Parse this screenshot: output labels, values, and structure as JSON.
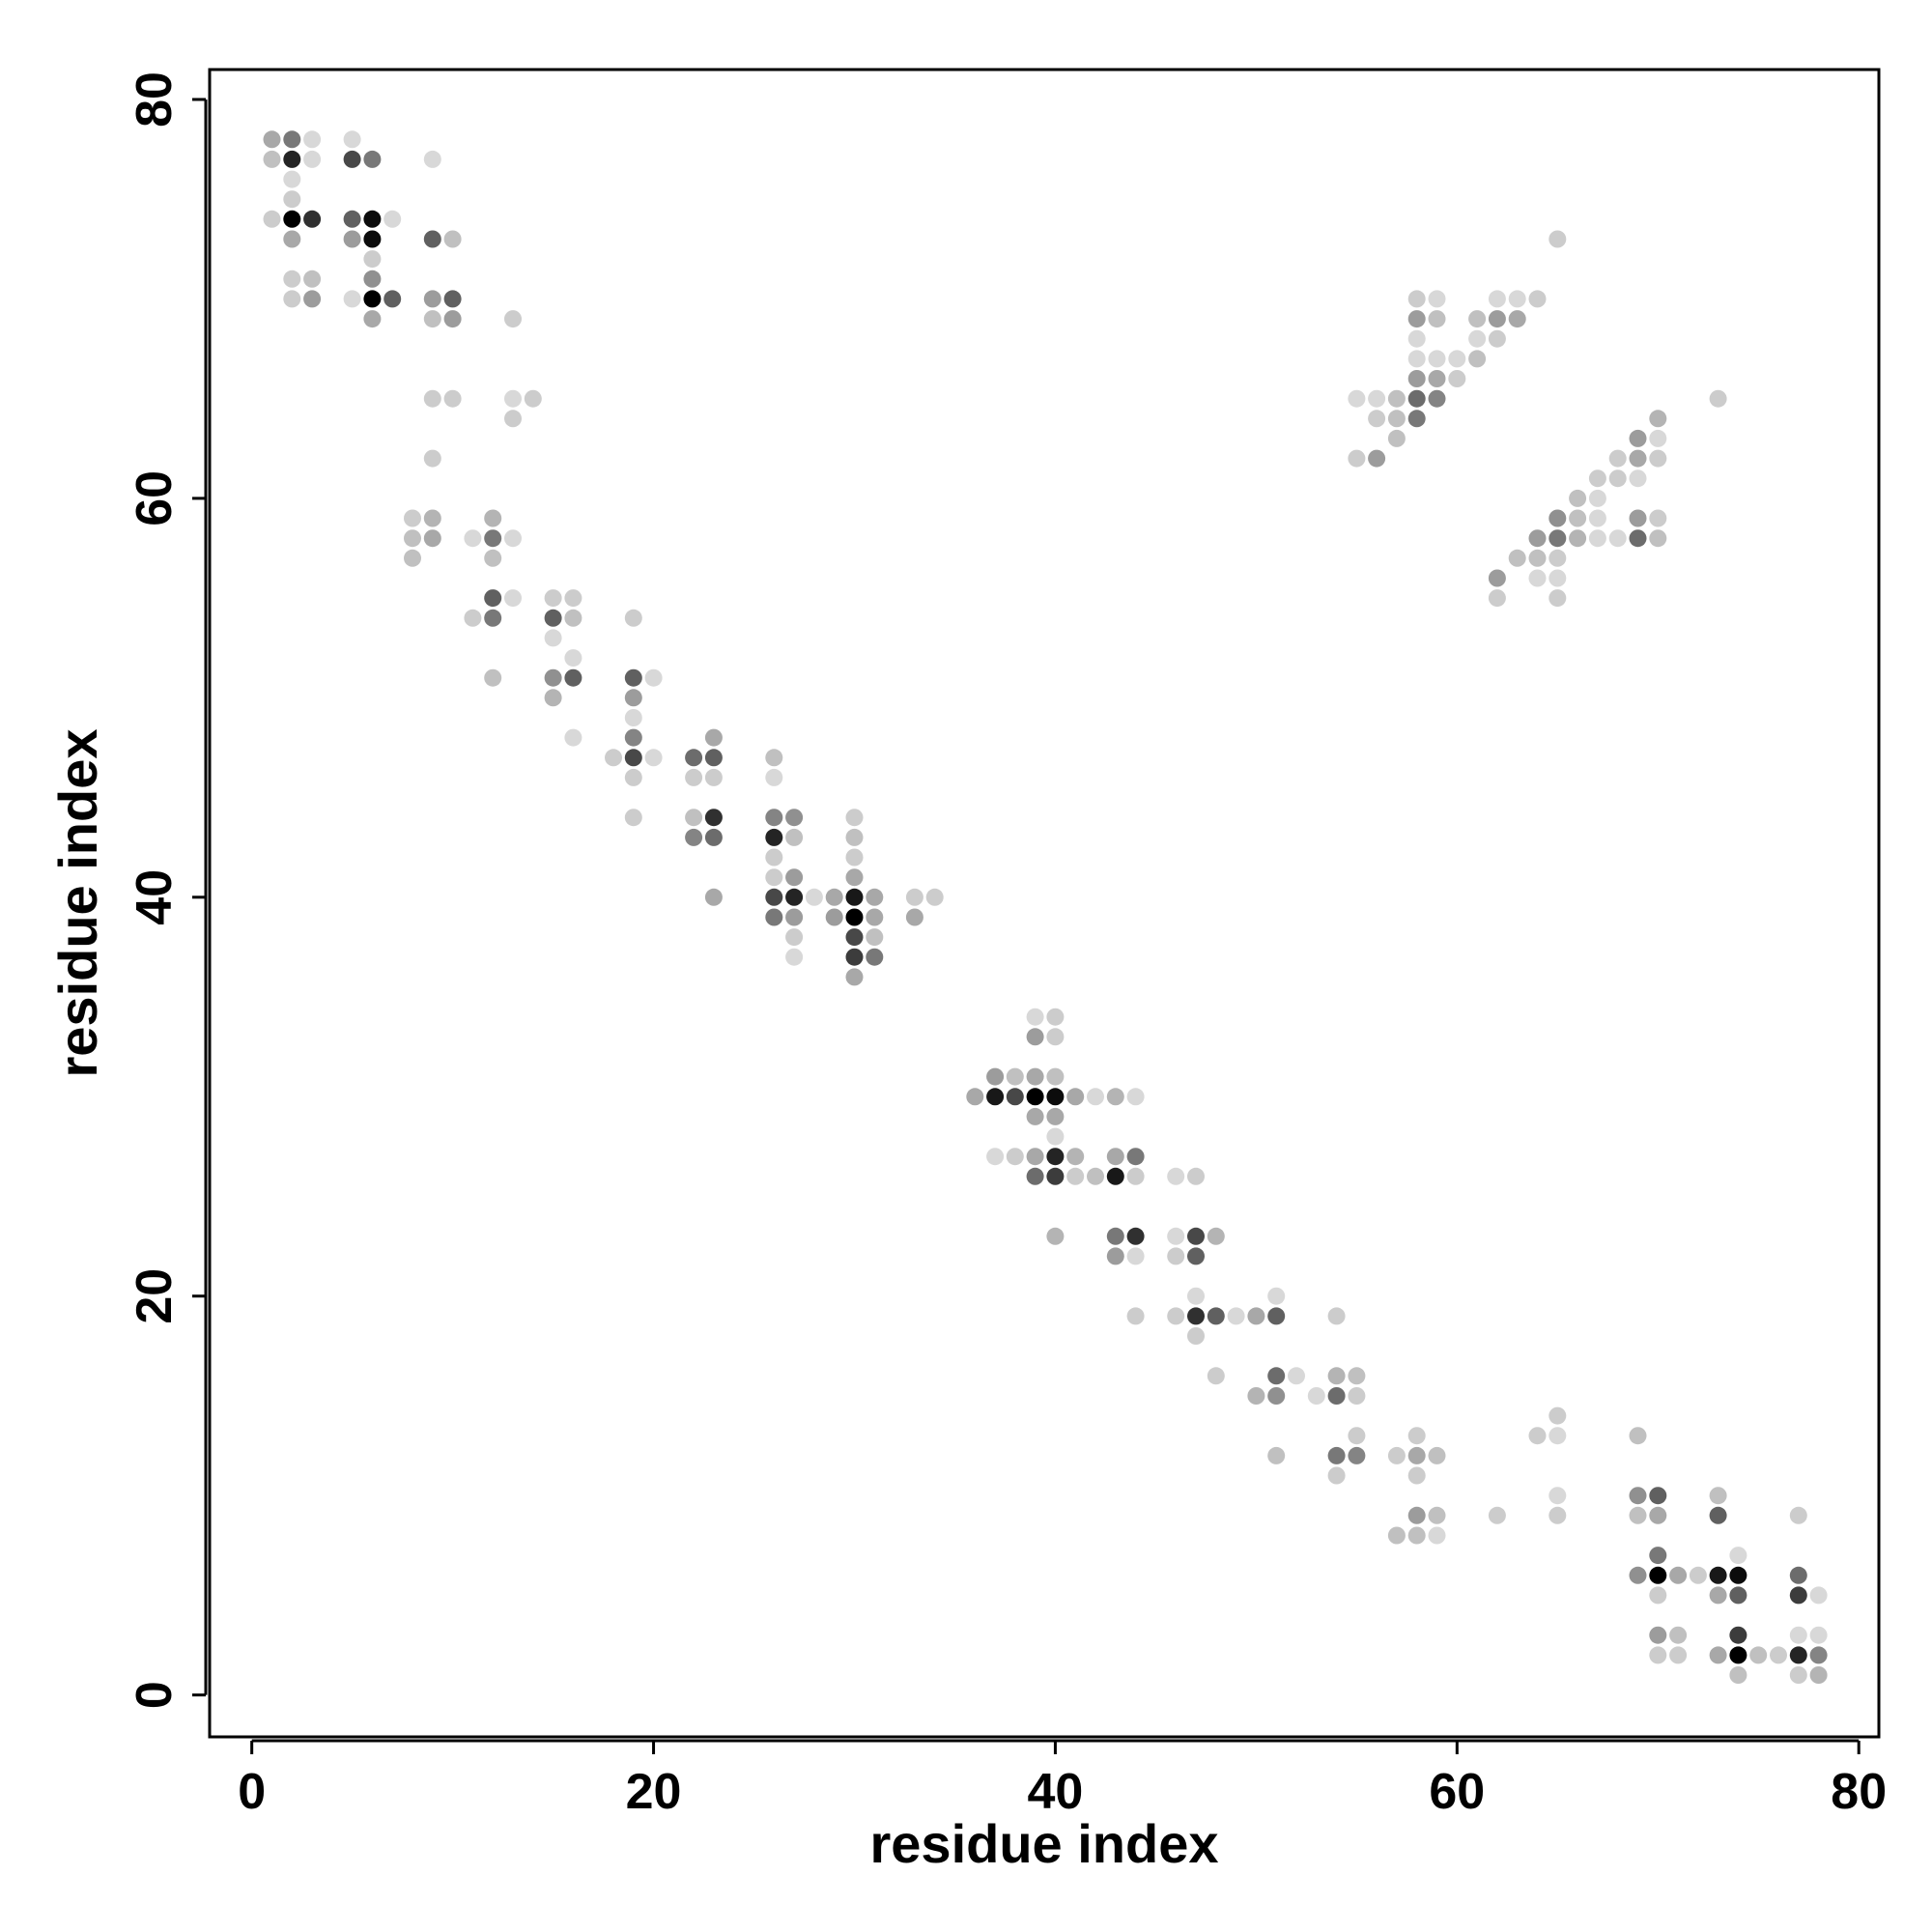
{
  "chart_data": {
    "type": "scatter",
    "title": "",
    "xlabel": "residue index",
    "ylabel": "residue index",
    "xlim": [
      -2.1,
      81
    ],
    "ylim": [
      -2.1,
      81.5
    ],
    "xticks": [
      0,
      20,
      40,
      60,
      80
    ],
    "yticks": [
      0,
      20,
      40,
      60,
      80
    ],
    "grid": false,
    "colormap": "grayscale, darker = higher value (0-1)",
    "points": [
      [
        1,
        78,
        0.3
      ],
      [
        2,
        78,
        0.5
      ],
      [
        3,
        78,
        0.1
      ],
      [
        1,
        77,
        0.2
      ],
      [
        2,
        77,
        0.85
      ],
      [
        3,
        77,
        0.1
      ],
      [
        2,
        76,
        0.1
      ],
      [
        2,
        75,
        0.15
      ],
      [
        1,
        74,
        0.15
      ],
      [
        2,
        74,
        1.0
      ],
      [
        3,
        74,
        0.8
      ],
      [
        2,
        73,
        0.3
      ],
      [
        2,
        71,
        0.15
      ],
      [
        3,
        71,
        0.2
      ],
      [
        2,
        70,
        0.15
      ],
      [
        3,
        70,
        0.35
      ],
      [
        5,
        78,
        0.1
      ],
      [
        5,
        77,
        0.7
      ],
      [
        6,
        77,
        0.5
      ],
      [
        5,
        74,
        0.6
      ],
      [
        6,
        74,
        0.95
      ],
      [
        7,
        74,
        0.1
      ],
      [
        5,
        73,
        0.35
      ],
      [
        6,
        73,
        0.95
      ],
      [
        6,
        72,
        0.15
      ],
      [
        6,
        71,
        0.4
      ],
      [
        5,
        70,
        0.1
      ],
      [
        6,
        70,
        1.0
      ],
      [
        7,
        70,
        0.6
      ],
      [
        6,
        69,
        0.3
      ],
      [
        9,
        77,
        0.1
      ],
      [
        9,
        73,
        0.6
      ],
      [
        10,
        73,
        0.2
      ],
      [
        9,
        70,
        0.35
      ],
      [
        10,
        70,
        0.6
      ],
      [
        9,
        69,
        0.2
      ],
      [
        10,
        69,
        0.35
      ],
      [
        13,
        69,
        0.15
      ],
      [
        9,
        65,
        0.15
      ],
      [
        10,
        65,
        0.15
      ],
      [
        13,
        65,
        0.1
      ],
      [
        14,
        65,
        0.15
      ],
      [
        13,
        64,
        0.15
      ],
      [
        9,
        62,
        0.15
      ],
      [
        8,
        59,
        0.15
      ],
      [
        9,
        59,
        0.25
      ],
      [
        8,
        58,
        0.2
      ],
      [
        9,
        58,
        0.3
      ],
      [
        8,
        57,
        0.2
      ],
      [
        11,
        58,
        0.1
      ],
      [
        12,
        59,
        0.25
      ],
      [
        12,
        58,
        0.5
      ],
      [
        13,
        58,
        0.1
      ],
      [
        12,
        57,
        0.2
      ],
      [
        12,
        55,
        0.6
      ],
      [
        13,
        55,
        0.1
      ],
      [
        11,
        54,
        0.15
      ],
      [
        12,
        54,
        0.5
      ],
      [
        12,
        51,
        0.2
      ],
      [
        15,
        55,
        0.15
      ],
      [
        16,
        55,
        0.15
      ],
      [
        15,
        54,
        0.6
      ],
      [
        16,
        54,
        0.2
      ],
      [
        15,
        53,
        0.1
      ],
      [
        16,
        52,
        0.1
      ],
      [
        15,
        51,
        0.4
      ],
      [
        16,
        51,
        0.6
      ],
      [
        15,
        50,
        0.25
      ],
      [
        16,
        48,
        0.1
      ],
      [
        19,
        54,
        0.15
      ],
      [
        19,
        51,
        0.6
      ],
      [
        20,
        51,
        0.1
      ],
      [
        19,
        50,
        0.35
      ],
      [
        19,
        49,
        0.1
      ],
      [
        19,
        48,
        0.45
      ],
      [
        18,
        47,
        0.15
      ],
      [
        19,
        47,
        0.7
      ],
      [
        20,
        47,
        0.1
      ],
      [
        19,
        46,
        0.15
      ],
      [
        19,
        44,
        0.15
      ],
      [
        22,
        47,
        0.55
      ],
      [
        23,
        48,
        0.3
      ],
      [
        23,
        47,
        0.6
      ],
      [
        22,
        46,
        0.15
      ],
      [
        23,
        46,
        0.15
      ],
      [
        22,
        44,
        0.2
      ],
      [
        23,
        44,
        0.8
      ],
      [
        22,
        43,
        0.45
      ],
      [
        23,
        43,
        0.55
      ],
      [
        23,
        40,
        0.3
      ],
      [
        26,
        47,
        0.2
      ],
      [
        26,
        46,
        0.1
      ],
      [
        26,
        44,
        0.45
      ],
      [
        27,
        44,
        0.4
      ],
      [
        26,
        43,
        0.85
      ],
      [
        27,
        43,
        0.2
      ],
      [
        26,
        42,
        0.15
      ],
      [
        26,
        41,
        0.15
      ],
      [
        27,
        41,
        0.35
      ],
      [
        26,
        40,
        0.7
      ],
      [
        27,
        40,
        0.85
      ],
      [
        28,
        40,
        0.1
      ],
      [
        26,
        39,
        0.5
      ],
      [
        27,
        39,
        0.35
      ],
      [
        27,
        38,
        0.15
      ],
      [
        27,
        37,
        0.1
      ],
      [
        30,
        44,
        0.15
      ],
      [
        30,
        43,
        0.2
      ],
      [
        30,
        42,
        0.15
      ],
      [
        30,
        41,
        0.3
      ],
      [
        29,
        40,
        0.3
      ],
      [
        30,
        40,
        0.9
      ],
      [
        31,
        40,
        0.3
      ],
      [
        29,
        39,
        0.35
      ],
      [
        30,
        39,
        1.0
      ],
      [
        31,
        39,
        0.3
      ],
      [
        30,
        38,
        0.7
      ],
      [
        31,
        38,
        0.2
      ],
      [
        30,
        37,
        0.75
      ],
      [
        31,
        37,
        0.5
      ],
      [
        30,
        36,
        0.3
      ],
      [
        33,
        40,
        0.15
      ],
      [
        34,
        40,
        0.15
      ],
      [
        33,
        39,
        0.3
      ],
      [
        39,
        34,
        0.1
      ],
      [
        40,
        34,
        0.15
      ],
      [
        39,
        33,
        0.35
      ],
      [
        40,
        33,
        0.15
      ],
      [
        37,
        31,
        0.35
      ],
      [
        38,
        31,
        0.2
      ],
      [
        39,
        31,
        0.3
      ],
      [
        40,
        31,
        0.2
      ],
      [
        36,
        30,
        0.3
      ],
      [
        37,
        30,
        0.9
      ],
      [
        38,
        30,
        0.7
      ],
      [
        39,
        30,
        1.0
      ],
      [
        40,
        30,
        0.95
      ],
      [
        41,
        30,
        0.3
      ],
      [
        42,
        30,
        0.1
      ],
      [
        43,
        30,
        0.25
      ],
      [
        44,
        30,
        0.1
      ],
      [
        39,
        29,
        0.3
      ],
      [
        40,
        29,
        0.3
      ],
      [
        40,
        28,
        0.1
      ],
      [
        37,
        27,
        0.1
      ],
      [
        38,
        27,
        0.15
      ],
      [
        39,
        27,
        0.3
      ],
      [
        40,
        27,
        0.85
      ],
      [
        41,
        27,
        0.25
      ],
      [
        43,
        27,
        0.3
      ],
      [
        44,
        27,
        0.5
      ],
      [
        39,
        26,
        0.55
      ],
      [
        40,
        26,
        0.75
      ],
      [
        41,
        26,
        0.15
      ],
      [
        42,
        26,
        0.2
      ],
      [
        43,
        26,
        0.9
      ],
      [
        44,
        26,
        0.15
      ],
      [
        40,
        23,
        0.25
      ],
      [
        43,
        23,
        0.5
      ],
      [
        44,
        23,
        0.8
      ],
      [
        43,
        22,
        0.35
      ],
      [
        44,
        22,
        0.1
      ],
      [
        44,
        19,
        0.15
      ],
      [
        46,
        26,
        0.1
      ],
      [
        47,
        26,
        0.15
      ],
      [
        46,
        23,
        0.1
      ],
      [
        47,
        23,
        0.7
      ],
      [
        48,
        23,
        0.25
      ],
      [
        46,
        22,
        0.15
      ],
      [
        47,
        22,
        0.6
      ],
      [
        47,
        20,
        0.1
      ],
      [
        46,
        19,
        0.15
      ],
      [
        47,
        19,
        0.8
      ],
      [
        48,
        19,
        0.6
      ],
      [
        49,
        19,
        0.1
      ],
      [
        47,
        18,
        0.15
      ],
      [
        48,
        16,
        0.15
      ],
      [
        50,
        19,
        0.3
      ],
      [
        51,
        19,
        0.6
      ],
      [
        51,
        20,
        0.1
      ],
      [
        51,
        16,
        0.55
      ],
      [
        52,
        16,
        0.1
      ],
      [
        50,
        15,
        0.25
      ],
      [
        51,
        15,
        0.4
      ],
      [
        51,
        12,
        0.2
      ],
      [
        53,
        15,
        0.1
      ],
      [
        54,
        15,
        0.55
      ],
      [
        55,
        15,
        0.15
      ],
      [
        54,
        16,
        0.25
      ],
      [
        55,
        16,
        0.2
      ],
      [
        54,
        19,
        0.15
      ],
      [
        55,
        13,
        0.15
      ],
      [
        54,
        12,
        0.5
      ],
      [
        55,
        12,
        0.45
      ],
      [
        54,
        11,
        0.15
      ],
      [
        57,
        12,
        0.15
      ],
      [
        58,
        12,
        0.3
      ],
      [
        59,
        12,
        0.2
      ],
      [
        58,
        13,
        0.15
      ],
      [
        58,
        11,
        0.15
      ],
      [
        58,
        9,
        0.35
      ],
      [
        59,
        9,
        0.2
      ],
      [
        57,
        8,
        0.2
      ],
      [
        58,
        8,
        0.2
      ],
      [
        59,
        8,
        0.1
      ],
      [
        62,
        9,
        0.15
      ],
      [
        64,
        13,
        0.15
      ],
      [
        65,
        13,
        0.1
      ],
      [
        65,
        14,
        0.15
      ],
      [
        65,
        10,
        0.1
      ],
      [
        65,
        9,
        0.15
      ],
      [
        69,
        13,
        0.2
      ],
      [
        69,
        10,
        0.4
      ],
      [
        70,
        10,
        0.6
      ],
      [
        69,
        9,
        0.2
      ],
      [
        70,
        9,
        0.3
      ],
      [
        70,
        7,
        0.5
      ],
      [
        69,
        6,
        0.4
      ],
      [
        70,
        6,
        1.0
      ],
      [
        71,
        6,
        0.3
      ],
      [
        72,
        6,
        0.15
      ],
      [
        70,
        5,
        0.15
      ],
      [
        70,
        3,
        0.35
      ],
      [
        71,
        3,
        0.2
      ],
      [
        70,
        2,
        0.15
      ],
      [
        71,
        2,
        0.15
      ],
      [
        73,
        10,
        0.2
      ],
      [
        73,
        9,
        0.6
      ],
      [
        74,
        7,
        0.1
      ],
      [
        73,
        6,
        0.9
      ],
      [
        74,
        6,
        0.95
      ],
      [
        73,
        5,
        0.3
      ],
      [
        74,
        5,
        0.6
      ],
      [
        74,
        3,
        0.75
      ],
      [
        73,
        2,
        0.3
      ],
      [
        74,
        2,
        1.0
      ],
      [
        75,
        2,
        0.2
      ],
      [
        76,
        2,
        0.15
      ],
      [
        74,
        1,
        0.2
      ],
      [
        77,
        9,
        0.15
      ],
      [
        77,
        6,
        0.55
      ],
      [
        77,
        5,
        0.75
      ],
      [
        78,
        5,
        0.1
      ],
      [
        77,
        3,
        0.1
      ],
      [
        78,
        3,
        0.1
      ],
      [
        77,
        2,
        0.85
      ],
      [
        78,
        2,
        0.45
      ],
      [
        77,
        1,
        0.15
      ],
      [
        78,
        1,
        0.25
      ],
      [
        55,
        65,
        0.1
      ],
      [
        56,
        65,
        0.1
      ],
      [
        57,
        65,
        0.2
      ],
      [
        58,
        65,
        0.55
      ],
      [
        59,
        65,
        0.45
      ],
      [
        56,
        64,
        0.15
      ],
      [
        57,
        64,
        0.2
      ],
      [
        58,
        64,
        0.5
      ],
      [
        57,
        63,
        0.2
      ],
      [
        55,
        62,
        0.15
      ],
      [
        56,
        62,
        0.35
      ],
      [
        58,
        66,
        0.35
      ],
      [
        59,
        66,
        0.3
      ],
      [
        60,
        66,
        0.15
      ],
      [
        58,
        67,
        0.1
      ],
      [
        59,
        67,
        0.1
      ],
      [
        60,
        67,
        0.1
      ],
      [
        61,
        67,
        0.2
      ],
      [
        58,
        68,
        0.1
      ],
      [
        61,
        68,
        0.1
      ],
      [
        62,
        68,
        0.15
      ],
      [
        58,
        69,
        0.35
      ],
      [
        59,
        69,
        0.2
      ],
      [
        61,
        69,
        0.2
      ],
      [
        62,
        69,
        0.35
      ],
      [
        63,
        69,
        0.3
      ],
      [
        58,
        70,
        0.15
      ],
      [
        59,
        70,
        0.1
      ],
      [
        62,
        70,
        0.1
      ],
      [
        63,
        70,
        0.1
      ],
      [
        64,
        70,
        0.15
      ],
      [
        65,
        73,
        0.15
      ],
      [
        73,
        65,
        0.15
      ],
      [
        70,
        64,
        0.25
      ],
      [
        69,
        63,
        0.35
      ],
      [
        70,
        63,
        0.1
      ],
      [
        68,
        62,
        0.15
      ],
      [
        69,
        62,
        0.3
      ],
      [
        70,
        62,
        0.15
      ],
      [
        67,
        61,
        0.15
      ],
      [
        68,
        61,
        0.15
      ],
      [
        69,
        61,
        0.1
      ],
      [
        66,
        60,
        0.2
      ],
      [
        67,
        60,
        0.1
      ],
      [
        65,
        59,
        0.4
      ],
      [
        66,
        59,
        0.2
      ],
      [
        67,
        59,
        0.1
      ],
      [
        69,
        59,
        0.35
      ],
      [
        70,
        59,
        0.15
      ],
      [
        64,
        58,
        0.35
      ],
      [
        65,
        58,
        0.5
      ],
      [
        66,
        58,
        0.25
      ],
      [
        67,
        58,
        0.1
      ],
      [
        68,
        58,
        0.1
      ],
      [
        69,
        58,
        0.55
      ],
      [
        70,
        58,
        0.2
      ],
      [
        63,
        57,
        0.2
      ],
      [
        64,
        57,
        0.2
      ],
      [
        65,
        57,
        0.15
      ],
      [
        62,
        56,
        0.35
      ],
      [
        64,
        56,
        0.1
      ],
      [
        65,
        56,
        0.1
      ],
      [
        62,
        55,
        0.15
      ],
      [
        65,
        55,
        0.15
      ]
    ]
  }
}
